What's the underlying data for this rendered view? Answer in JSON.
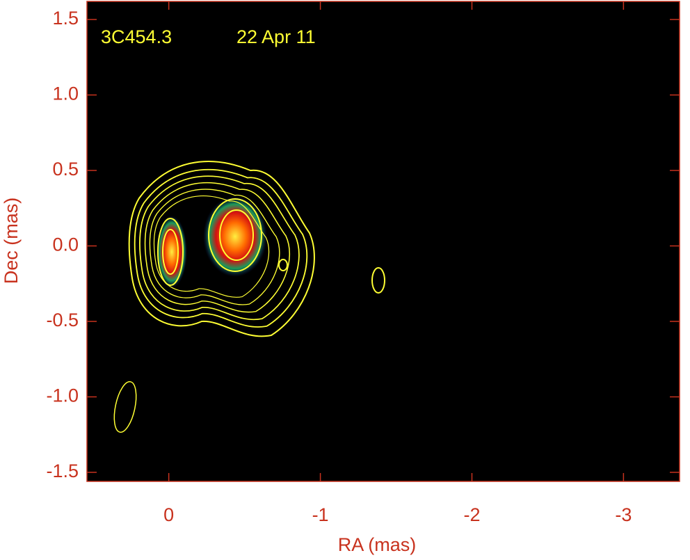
{
  "chart_data": {
    "type": "image",
    "annotations": [
      "3C454.3",
      "22 Apr 11"
    ],
    "xlabel": "RA (mas)",
    "ylabel": "Dec (mas)",
    "xlim": [
      0.54,
      -3.37
    ],
    "ylim": [
      -1.56,
      1.62
    ],
    "xticks": [
      0,
      -1,
      -2,
      -3
    ],
    "yticks": [
      1.5,
      {
        "value": 1,
        "label": "1.0"
      },
      0.5,
      {
        "value": 0,
        "label": "0.0"
      },
      -0.5,
      {
        "value": -1,
        "label": "-1.0"
      },
      -1.5
    ],
    "axis_color": "#c8321e",
    "annotation_color": "#ffff33"
  }
}
